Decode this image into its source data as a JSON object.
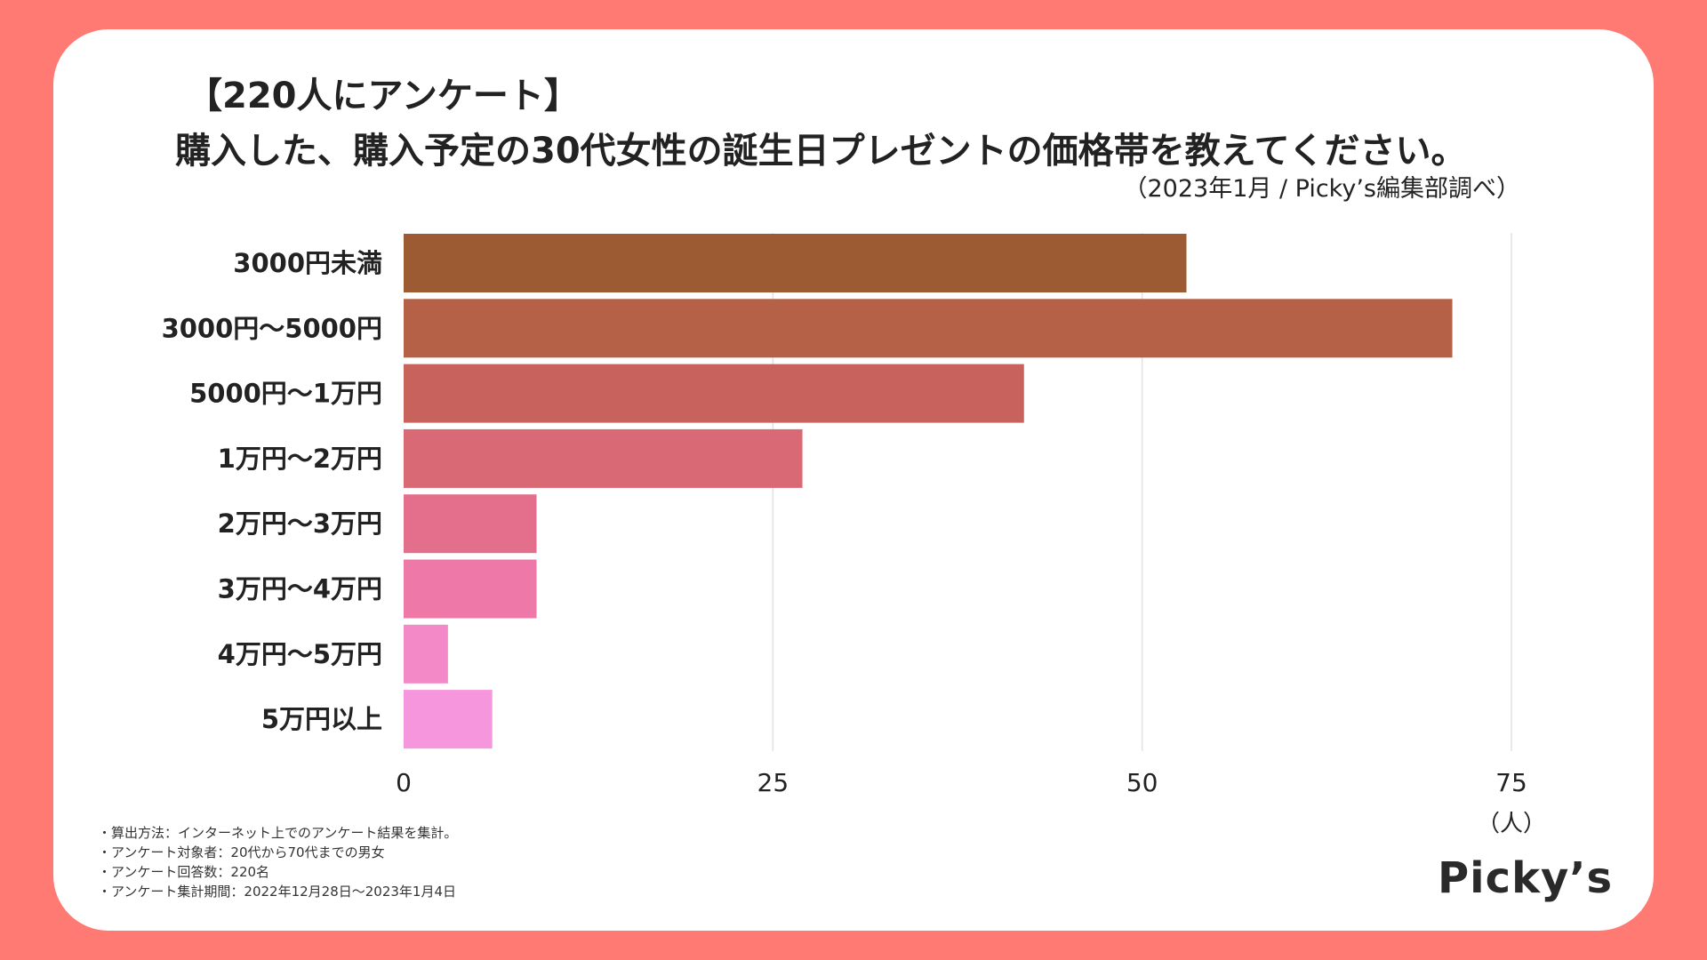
{
  "header": {
    "title_line1": "【220人にアンケート】",
    "title_line2": "購入した、購入予定の30代女性の誕生日プレゼントの価格帯を教えてください。",
    "source": "（2023年1月 / Picky’s編集部調べ）"
  },
  "chart_data": {
    "type": "bar",
    "orientation": "horizontal",
    "categories": [
      "3000円未満",
      "3000円〜5000円",
      "5000円〜1万円",
      "1万円〜2万円",
      "2万円〜3万円",
      "3万円〜4万円",
      "4万円〜5万円",
      "5万円以上"
    ],
    "values": [
      53,
      71,
      42,
      27,
      9,
      9,
      3,
      6
    ],
    "xlim": [
      0,
      75
    ],
    "xticks": [
      "0",
      "25",
      "50",
      "75"
    ],
    "xlabel": "（人）",
    "grid": true,
    "colors": [
      "#9c5b33",
      "#b56148",
      "#c7625d",
      "#d96a75",
      "#e46f8c",
      "#ee79a8",
      "#f389c6",
      "#f696dd"
    ]
  },
  "notes": [
    "・算出方法：インターネット上でのアンケート結果を集計。",
    "・アンケート対象者：20代から70代までの男女",
    "・アンケート回答数：220名",
    "・アンケート集計期間：2022年12月28日〜2023年1月4日"
  ],
  "brand": {
    "logo_text": "Picky’s"
  },
  "colors": {
    "background": "#ff7a72",
    "card": "#ffffff",
    "grid": "#e2e2e2"
  }
}
